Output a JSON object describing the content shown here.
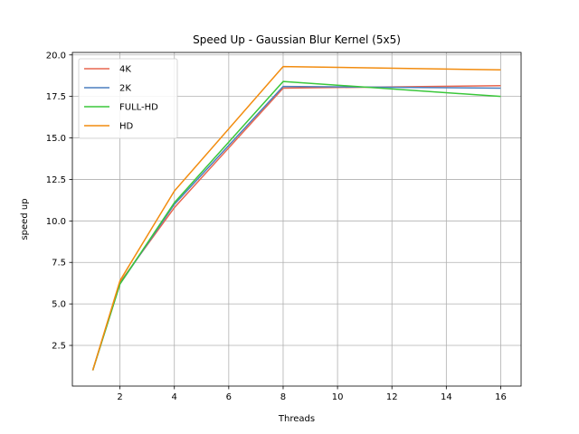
{
  "chart_data": {
    "type": "line",
    "title": "Speed Up - Gaussian Blur Kernel (5x5)",
    "xlabel": "Threads",
    "ylabel": "speed up",
    "xlim": [
      0.25,
      16.75
    ],
    "ylim": [
      0.05,
      20.15
    ],
    "xticks": [
      2,
      4,
      6,
      8,
      10,
      12,
      14,
      16
    ],
    "yticks": [
      2.5,
      5.0,
      7.5,
      10.0,
      12.5,
      15.0,
      17.5,
      20.0
    ],
    "xtick_labels": [
      "2",
      "4",
      "6",
      "8",
      "10",
      "12",
      "14",
      "16"
    ],
    "ytick_labels": [
      "2.5",
      "5.0",
      "7.5",
      "10.0",
      "12.5",
      "15.0",
      "17.5",
      "20.0"
    ],
    "grid": true,
    "legend_position": "top-left",
    "x": [
      1,
      2,
      4,
      8,
      16
    ],
    "series": [
      {
        "name": "4K",
        "color": "#e8664f",
        "values": [
          1.0,
          6.3,
          10.8,
          18.0,
          18.15
        ]
      },
      {
        "name": "2K",
        "color": "#4a7fbf",
        "values": [
          1.0,
          6.2,
          11.0,
          18.1,
          18.0
        ]
      },
      {
        "name": "FULL-HD",
        "color": "#3ac73a",
        "values": [
          1.0,
          6.2,
          11.1,
          18.4,
          17.5
        ]
      },
      {
        "name": "HD",
        "color": "#f28c0f",
        "values": [
          1.0,
          6.4,
          11.8,
          19.3,
          19.1
        ]
      }
    ]
  }
}
